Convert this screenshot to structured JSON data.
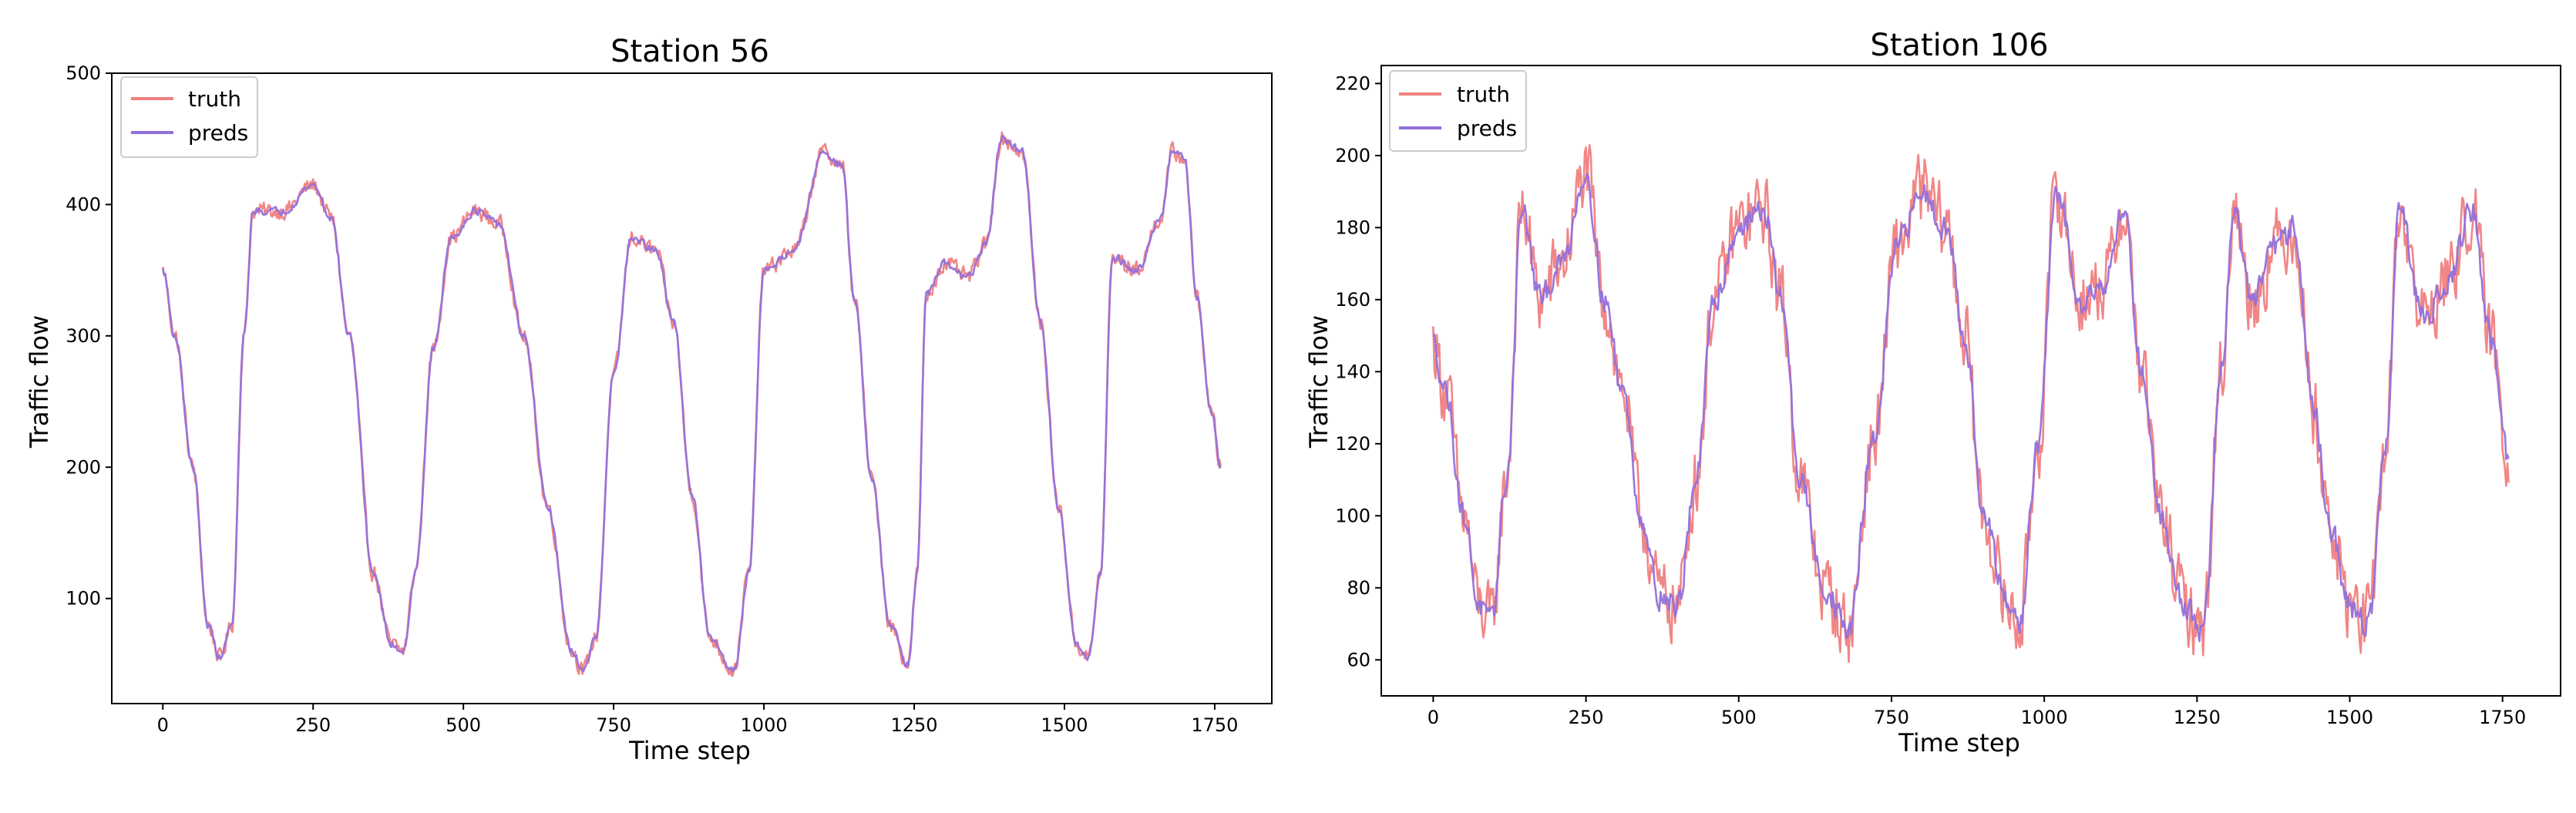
{
  "chart_data": [
    {
      "type": "line",
      "title": "Station 56",
      "xlabel": "Time step",
      "ylabel": "Traffic flow",
      "xlim": [
        -85,
        1845
      ],
      "ylim": [
        20,
        500
      ],
      "xticks": [
        0,
        250,
        500,
        750,
        1000,
        1250,
        1500,
        1750
      ],
      "yticks": [
        100,
        200,
        300,
        400,
        500
      ],
      "legend": "top-left",
      "grid": false,
      "length": 1760,
      "series": [
        {
          "name": "truth",
          "color": "#f08080",
          "noise": 9,
          "keypoints": [
            [
              0,
              350
            ],
            [
              20,
              300
            ],
            [
              50,
              200
            ],
            [
              75,
              80
            ],
            [
              95,
              55
            ],
            [
              115,
              80
            ],
            [
              135,
              300
            ],
            [
              150,
              395
            ],
            [
              200,
              395
            ],
            [
              250,
              415
            ],
            [
              280,
              390
            ],
            [
              310,
              300
            ],
            [
              350,
              120
            ],
            [
              380,
              65
            ],
            [
              400,
              60
            ],
            [
              420,
              120
            ],
            [
              450,
              290
            ],
            [
              480,
              375
            ],
            [
              520,
              395
            ],
            [
              560,
              385
            ],
            [
              600,
              300
            ],
            [
              640,
              170
            ],
            [
              680,
              60
            ],
            [
              700,
              45
            ],
            [
              720,
              70
            ],
            [
              750,
              270
            ],
            [
              780,
              375
            ],
            [
              820,
              365
            ],
            [
              850,
              310
            ],
            [
              880,
              180
            ],
            [
              910,
              70
            ],
            [
              950,
              45
            ],
            [
              975,
              120
            ],
            [
              1000,
              350
            ],
            [
              1050,
              365
            ],
            [
              1100,
              440
            ],
            [
              1130,
              430
            ],
            [
              1150,
              330
            ],
            [
              1180,
              190
            ],
            [
              1210,
              80
            ],
            [
              1240,
              50
            ],
            [
              1255,
              120
            ],
            [
              1270,
              330
            ],
            [
              1300,
              355
            ],
            [
              1340,
              345
            ],
            [
              1370,
              370
            ],
            [
              1395,
              450
            ],
            [
              1430,
              440
            ],
            [
              1460,
              310
            ],
            [
              1490,
              170
            ],
            [
              1520,
              65
            ],
            [
              1540,
              55
            ],
            [
              1560,
              120
            ],
            [
              1580,
              360
            ],
            [
              1620,
              350
            ],
            [
              1660,
              390
            ],
            [
              1680,
              440
            ],
            [
              1700,
              435
            ],
            [
              1720,
              330
            ],
            [
              1745,
              240
            ],
            [
              1760,
              200
            ]
          ]
        },
        {
          "name": "preds",
          "color": "#9370db",
          "noise": 4,
          "keypoints": [
            [
              0,
              350
            ],
            [
              20,
              300
            ],
            [
              50,
              200
            ],
            [
              75,
              80
            ],
            [
              95,
              55
            ],
            [
              115,
              80
            ],
            [
              135,
              300
            ],
            [
              150,
              395
            ],
            [
              200,
              395
            ],
            [
              250,
              415
            ],
            [
              280,
              390
            ],
            [
              310,
              300
            ],
            [
              350,
              120
            ],
            [
              380,
              65
            ],
            [
              400,
              60
            ],
            [
              420,
              120
            ],
            [
              450,
              290
            ],
            [
              480,
              375
            ],
            [
              520,
              395
            ],
            [
              560,
              385
            ],
            [
              600,
              300
            ],
            [
              640,
              170
            ],
            [
              680,
              60
            ],
            [
              700,
              45
            ],
            [
              720,
              70
            ],
            [
              750,
              270
            ],
            [
              780,
              375
            ],
            [
              820,
              365
            ],
            [
              850,
              310
            ],
            [
              880,
              180
            ],
            [
              910,
              70
            ],
            [
              950,
              45
            ],
            [
              975,
              120
            ],
            [
              1000,
              350
            ],
            [
              1050,
              365
            ],
            [
              1100,
              440
            ],
            [
              1130,
              430
            ],
            [
              1150,
              330
            ],
            [
              1180,
              190
            ],
            [
              1210,
              80
            ],
            [
              1240,
              50
            ],
            [
              1255,
              120
            ],
            [
              1270,
              330
            ],
            [
              1300,
              355
            ],
            [
              1340,
              345
            ],
            [
              1370,
              370
            ],
            [
              1395,
              450
            ],
            [
              1430,
              440
            ],
            [
              1460,
              310
            ],
            [
              1490,
              170
            ],
            [
              1520,
              65
            ],
            [
              1540,
              55
            ],
            [
              1560,
              120
            ],
            [
              1580,
              360
            ],
            [
              1620,
              350
            ],
            [
              1660,
              390
            ],
            [
              1680,
              440
            ],
            [
              1700,
              435
            ],
            [
              1720,
              330
            ],
            [
              1745,
              240
            ],
            [
              1760,
              200
            ]
          ]
        }
      ]
    },
    {
      "type": "line",
      "title": "Station 106",
      "xlabel": "Time step",
      "ylabel": "Traffic flow",
      "xlim": [
        -85,
        1845
      ],
      "ylim": [
        50,
        225
      ],
      "xticks": [
        0,
        250,
        500,
        750,
        1000,
        1250,
        1500,
        1750
      ],
      "yticks": [
        60,
        80,
        100,
        120,
        140,
        160,
        180,
        200,
        220
      ],
      "legend": "top-left",
      "grid": false,
      "length": 1760,
      "series": [
        {
          "name": "truth",
          "color": "#f08080",
          "noise": 14,
          "keypoints": [
            [
              0,
              148
            ],
            [
              20,
              135
            ],
            [
              50,
              100
            ],
            [
              75,
              75
            ],
            [
              95,
              70
            ],
            [
              120,
              110
            ],
            [
              145,
              185
            ],
            [
              175,
              160
            ],
            [
              210,
              170
            ],
            [
              250,
              195
            ],
            [
              280,
              160
            ],
            [
              310,
              135
            ],
            [
              340,
              100
            ],
            [
              370,
              78
            ],
            [
              400,
              75
            ],
            [
              430,
              110
            ],
            [
              460,
              160
            ],
            [
              500,
              180
            ],
            [
              540,
              185
            ],
            [
              570,
              160
            ],
            [
              600,
              110
            ],
            [
              640,
              80
            ],
            [
              680,
              68
            ],
            [
              720,
              120
            ],
            [
              760,
              175
            ],
            [
              800,
              190
            ],
            [
              840,
              180
            ],
            [
              870,
              150
            ],
            [
              900,
              100
            ],
            [
              940,
              75
            ],
            [
              960,
              70
            ],
            [
              990,
              120
            ],
            [
              1020,
              190
            ],
            [
              1060,
              160
            ],
            [
              1100,
              165
            ],
            [
              1130,
              185
            ],
            [
              1160,
              140
            ],
            [
              1190,
              100
            ],
            [
              1230,
              75
            ],
            [
              1260,
              68
            ],
            [
              1290,
              140
            ],
            [
              1310,
              185
            ],
            [
              1340,
              160
            ],
            [
              1380,
              175
            ],
            [
              1410,
              180
            ],
            [
              1440,
              130
            ],
            [
              1470,
              95
            ],
            [
              1500,
              75
            ],
            [
              1530,
              70
            ],
            [
              1560,
              120
            ],
            [
              1580,
              185
            ],
            [
              1620,
              155
            ],
            [
              1660,
              165
            ],
            [
              1700,
              185
            ],
            [
              1730,
              150
            ],
            [
              1760,
              115
            ]
          ]
        },
        {
          "name": "preds",
          "color": "#9370db",
          "noise": 5,
          "keypoints": [
            [
              0,
              148
            ],
            [
              20,
              135
            ],
            [
              50,
              100
            ],
            [
              75,
              75
            ],
            [
              95,
              70
            ],
            [
              120,
              110
            ],
            [
              145,
              185
            ],
            [
              175,
              160
            ],
            [
              210,
              170
            ],
            [
              250,
              195
            ],
            [
              280,
              160
            ],
            [
              310,
              135
            ],
            [
              340,
              100
            ],
            [
              370,
              78
            ],
            [
              400,
              75
            ],
            [
              430,
              110
            ],
            [
              460,
              160
            ],
            [
              500,
              180
            ],
            [
              540,
              185
            ],
            [
              570,
              160
            ],
            [
              600,
              110
            ],
            [
              640,
              80
            ],
            [
              680,
              68
            ],
            [
              720,
              120
            ],
            [
              760,
              175
            ],
            [
              800,
              190
            ],
            [
              840,
              180
            ],
            [
              870,
              150
            ],
            [
              900,
              100
            ],
            [
              940,
              75
            ],
            [
              960,
              70
            ],
            [
              990,
              120
            ],
            [
              1020,
              190
            ],
            [
              1060,
              160
            ],
            [
              1100,
              165
            ],
            [
              1130,
              185
            ],
            [
              1160,
              140
            ],
            [
              1190,
              100
            ],
            [
              1230,
              75
            ],
            [
              1260,
              68
            ],
            [
              1290,
              140
            ],
            [
              1310,
              185
            ],
            [
              1340,
              160
            ],
            [
              1380,
              175
            ],
            [
              1410,
              180
            ],
            [
              1440,
              130
            ],
            [
              1470,
              95
            ],
            [
              1500,
              75
            ],
            [
              1530,
              70
            ],
            [
              1560,
              120
            ],
            [
              1580,
              185
            ],
            [
              1620,
              155
            ],
            [
              1660,
              165
            ],
            [
              1700,
              185
            ],
            [
              1730,
              150
            ],
            [
              1760,
              115
            ]
          ]
        }
      ]
    }
  ]
}
